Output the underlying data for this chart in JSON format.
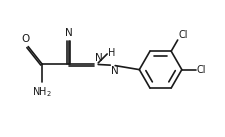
{
  "bg_color": "#ffffff",
  "line_color": "#1a1a1a",
  "line_width": 1.2,
  "font_size": 7.0,
  "figsize": [
    2.25,
    1.37
  ],
  "dpi": 100,
  "xlim": [
    0,
    10
  ],
  "ylim": [
    0,
    6
  ]
}
